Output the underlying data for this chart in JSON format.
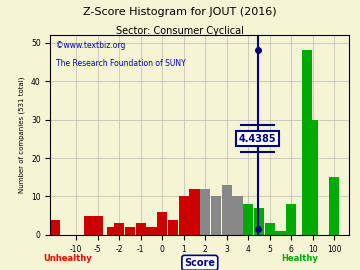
{
  "title": "Z-Score Histogram for JOUT (2016)",
  "subtitle": "Sector: Consumer Cyclical",
  "watermark1": "©www.textbiz.org",
  "watermark2": "The Research Foundation of SUNY",
  "xlabel": "Score",
  "ylabel": "Number of companies (531 total)",
  "ylim": [
    0,
    52
  ],
  "jout_zscore": 4.4385,
  "annotation_label": "4.4385",
  "background_color": "#f5f5d5",
  "grid_color": "#bbbbbb",
  "tick_real": [
    -10,
    -5,
    -2,
    -1,
    0,
    1,
    2,
    3,
    4,
    5,
    6,
    10,
    100
  ],
  "tick_labels": [
    "-10",
    "-5",
    "-2",
    "-1",
    "0",
    "1",
    "2",
    "3",
    "4",
    "5",
    "6",
    "10",
    "100"
  ],
  "ytick_positions": [
    0,
    10,
    20,
    30,
    40,
    50
  ],
  "bars": [
    [
      -11,
      4,
      "#cc0000"
    ],
    [
      -7,
      5,
      "#cc0000"
    ],
    [
      -5,
      5,
      "#cc0000"
    ],
    [
      -3,
      2,
      "#cc0000"
    ],
    [
      -2,
      3,
      "#cc0000"
    ],
    [
      -1.5,
      2,
      "#cc0000"
    ],
    [
      -1,
      3,
      "#cc0000"
    ],
    [
      -0.5,
      2,
      "#cc0000"
    ],
    [
      0.0,
      6,
      "#cc0000"
    ],
    [
      0.5,
      4,
      "#cc0000"
    ],
    [
      1.0,
      10,
      "#cc0000"
    ],
    [
      1.5,
      12,
      "#cc0000"
    ],
    [
      2.0,
      12,
      "#888888"
    ],
    [
      2.5,
      10,
      "#888888"
    ],
    [
      3.0,
      13,
      "#888888"
    ],
    [
      3.5,
      10,
      "#888888"
    ],
    [
      4.0,
      8,
      "#00aa00"
    ],
    [
      4.5,
      7,
      "#00aa00"
    ],
    [
      5.0,
      3,
      "#00aa00"
    ],
    [
      5.5,
      1,
      "#00aa00"
    ],
    [
      6.0,
      8,
      "#00aa00"
    ],
    [
      9.0,
      48,
      "#00aa00"
    ],
    [
      10.0,
      30,
      "#00aa00"
    ],
    [
      100.0,
      15,
      "#00aa00"
    ]
  ]
}
